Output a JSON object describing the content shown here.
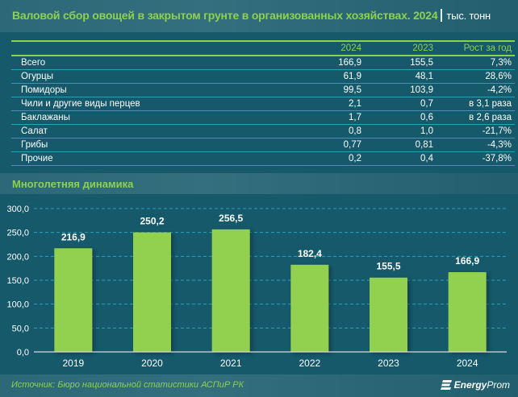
{
  "header": {
    "title": "Валовой сбор овощей в закрытом грунте в организованных хозяйствах. 2024",
    "units": "тыс. тонн"
  },
  "table": {
    "columns": [
      "",
      "2024",
      "2023",
      "Рост за год"
    ],
    "rows": [
      {
        "name": "Всего",
        "v2024": "166,9",
        "v2023": "155,5",
        "growth": "7,3%"
      },
      {
        "name": "Огурцы",
        "v2024": "61,9",
        "v2023": "48,1",
        "growth": "28,6%"
      },
      {
        "name": "Помидоры",
        "v2024": "99,5",
        "v2023": "103,9",
        "growth": "-4,2%"
      },
      {
        "name": "Чили и другие виды перцев",
        "v2024": "2,1",
        "v2023": "0,7",
        "growth": "в 3,1 раза"
      },
      {
        "name": "Баклажаны",
        "v2024": "1,7",
        "v2023": "0,6",
        "growth": "в 2,6 раза"
      },
      {
        "name": "Салат",
        "v2024": "0,8",
        "v2023": "1,0",
        "growth": "-21,7%"
      },
      {
        "name": "Грибы",
        "v2024": "0,77",
        "v2023": "0,81",
        "growth": "-4,3%"
      },
      {
        "name": "Прочие",
        "v2024": "0,2",
        "v2023": "0,4",
        "growth": "-37,8%"
      }
    ]
  },
  "section": {
    "title": "Многолетняя динамика"
  },
  "chart_data": {
    "type": "bar",
    "title": "Многолетняя динамика",
    "categories": [
      "2019",
      "2020",
      "2021",
      "2022",
      "2023",
      "2024"
    ],
    "values": [
      216.9,
      250.2,
      256.5,
      182.4,
      155.5,
      166.9
    ],
    "value_labels": [
      "216,9",
      "250,2",
      "256,5",
      "182,4",
      "155,5",
      "166,9"
    ],
    "xlabel": "",
    "ylabel": "",
    "ylim": [
      0,
      300
    ],
    "yticks": [
      0,
      50,
      100,
      150,
      200,
      250,
      300
    ],
    "ytick_labels": [
      "0,0",
      "50,0",
      "100,0",
      "150,0",
      "200,0",
      "250,0",
      "300,0"
    ],
    "grid": true,
    "legend": "none",
    "colors": {
      "bar": "#92d050",
      "grid": "#2aa0b8",
      "text": "#ffffff",
      "axis": "#d9d9d9"
    }
  },
  "footer": {
    "source": "Источник: Бюро национальной статистики АСПиР РК",
    "logo_bold": "Energy",
    "logo_rest": "Prom"
  }
}
